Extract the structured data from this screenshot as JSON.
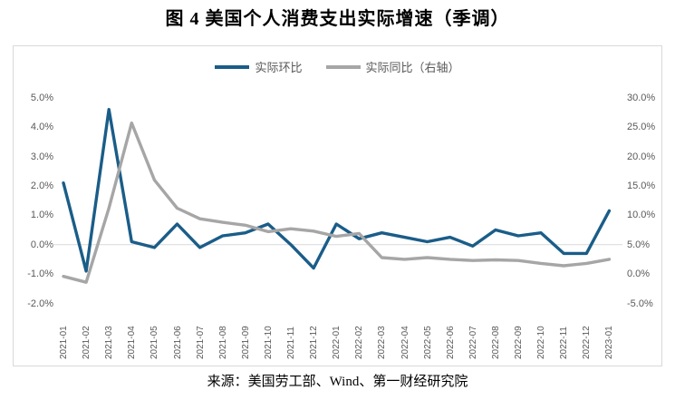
{
  "title": "图 4 美国个人消费支出实际增速（季调）",
  "source": "来源：美国劳工部、Wind、第一财经研究院",
  "colors": {
    "mom_line": "#1a5d88",
    "yoy_line": "#a6a6a6",
    "axis_text": "#595959",
    "gridline": "#d9d9d9",
    "panel_border": "#d9d9d9"
  },
  "chart_data": {
    "type": "line",
    "title": "图 4 美国个人消费支出实际增速（季调）",
    "categories": [
      "2021-01",
      "2021-02",
      "2021-03",
      "2021-04",
      "2021-05",
      "2021-06",
      "2021-07",
      "2021-08",
      "2021-09",
      "2021-10",
      "2021-11",
      "2021-12",
      "2022-01",
      "2022-02",
      "2022-03",
      "2022-04",
      "2022-05",
      "2022-06",
      "2022-07",
      "2022-08",
      "2022-09",
      "2022-10",
      "2022-11",
      "2022-12",
      "2023-01"
    ],
    "series": [
      {
        "name": "实际环比",
        "axis": "left",
        "color": "#1a5d88",
        "values": [
          2.1,
          -0.9,
          4.6,
          0.1,
          -0.1,
          0.7,
          -0.1,
          0.3,
          0.4,
          0.7,
          0.0,
          -0.8,
          0.7,
          0.2,
          0.4,
          0.25,
          0.1,
          0.25,
          -0.05,
          0.5,
          0.3,
          0.4,
          -0.3,
          -0.3,
          1.15
        ]
      },
      {
        "name": "实际同比（右轴）",
        "axis": "right",
        "color": "#a6a6a6",
        "values": [
          -0.4,
          -1.4,
          11.2,
          25.7,
          16.0,
          11.2,
          9.4,
          8.8,
          8.3,
          7.2,
          7.7,
          7.3,
          6.4,
          6.9,
          2.8,
          2.5,
          2.8,
          2.5,
          2.3,
          2.4,
          2.3,
          1.8,
          1.4,
          1.8,
          2.5
        ]
      }
    ],
    "left_axis": {
      "ticks": [
        "5.0%",
        "4.0%",
        "3.0%",
        "2.0%",
        "1.0%",
        "0.0%",
        "-1.0%",
        "-2.0%"
      ],
      "min": -2,
      "max": 5
    },
    "right_axis": {
      "ticks": [
        "30.0%",
        "25.0%",
        "20.0%",
        "15.0%",
        "10.0%",
        "5.0%",
        "0.0%",
        "-5.0%"
      ],
      "min": -5,
      "max": 30
    },
    "grid": "horizontal line at 0% (left axis) only",
    "legend_position": "top"
  }
}
